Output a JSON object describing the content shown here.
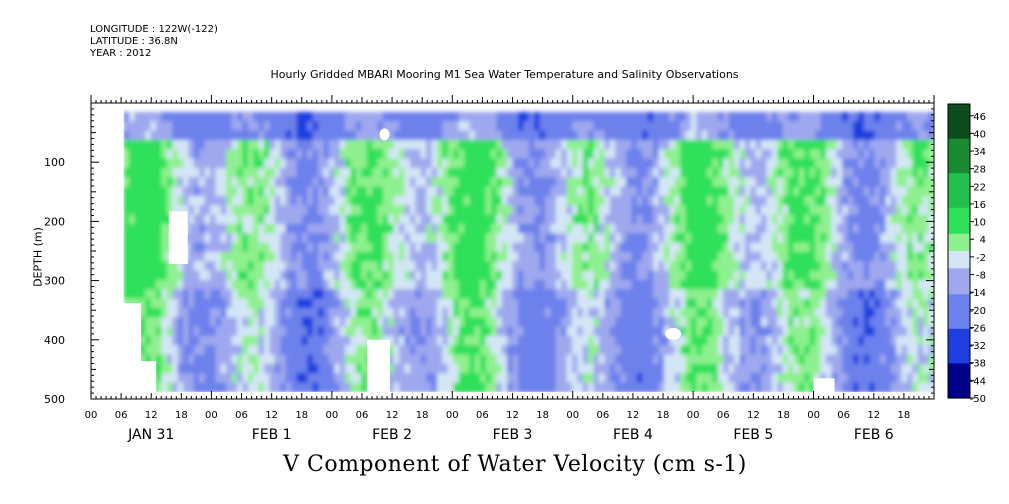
{
  "header": {
    "longitude": "LONGITUDE : 122W(-122)",
    "latitude": "LATITUDE : 36.8N",
    "year": "YEAR : 2012"
  },
  "chart_data": {
    "type": "heatmap",
    "title": "Hourly Gridded MBARI Mooring M1 Sea Water Temperature and Salinity Observations",
    "xlabel": "V Component of Water Velocity (cm s-1)",
    "ylabel": "DEPTH (m)",
    "ylim": [
      500,
      0
    ],
    "y_ticks": [
      "100",
      "200",
      "300",
      "400",
      "500"
    ],
    "x_hour_ticks": [
      "00",
      "06",
      "12",
      "18",
      "00",
      "06",
      "12",
      "18",
      "00",
      "06",
      "12",
      "18",
      "00",
      "06",
      "12",
      "18",
      "00",
      "06",
      "12",
      "18",
      "00",
      "06",
      "12",
      "18",
      "00",
      "06",
      "12",
      "18"
    ],
    "x_day_labels": [
      "JAN 31",
      "FEB  1",
      "FEB  2",
      "FEB  3",
      "FEB  4",
      "FEB  5",
      "FEB  6"
    ],
    "colorbar": {
      "min": -50,
      "max": 50,
      "step": 3,
      "labels": [
        "46",
        "40",
        "34",
        "28",
        "22",
        "16",
        "10",
        "4",
        "-2",
        "-8",
        "-14",
        "-20",
        "-26",
        "-32",
        "-38",
        "-44",
        "-50"
      ]
    },
    "colors": {
      "strong_positive": "#0b4d1c",
      "positive": "#2ee05a",
      "weak_positive": "#8ef08e",
      "near_zero": "#d4e6f6",
      "weak_negative": "#9fa8ee",
      "negative": "#6d81ec",
      "strong_negative": "#1d3fe0",
      "extreme_negative": "#000088"
    }
  }
}
